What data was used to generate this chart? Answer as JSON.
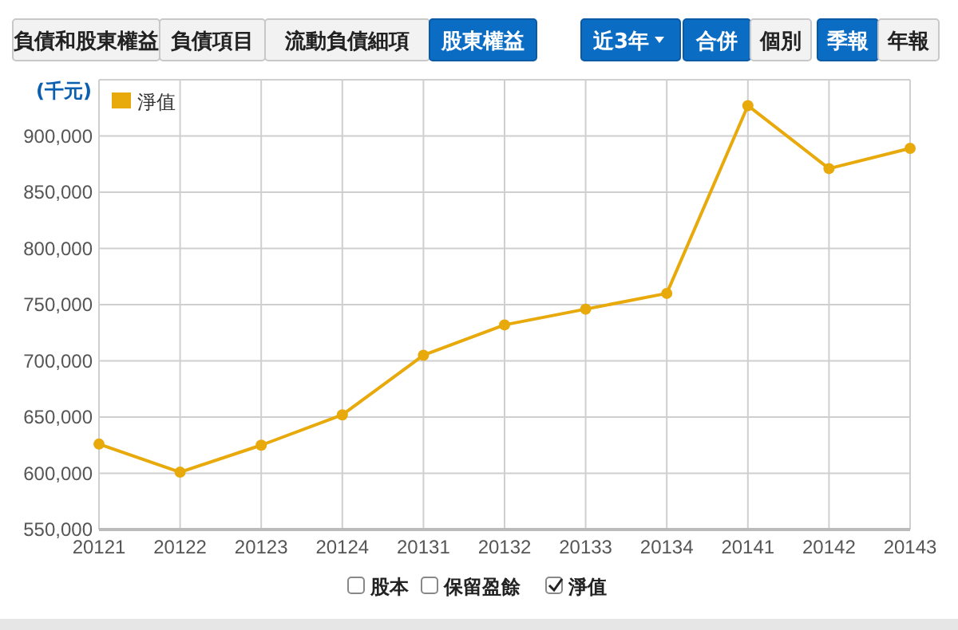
{
  "chart_data": {
    "type": "line",
    "ylabel": "(千元)",
    "categories": [
      "20121",
      "20122",
      "20123",
      "20124",
      "20131",
      "20132",
      "20133",
      "20134",
      "20141",
      "20142",
      "20143"
    ],
    "series": [
      {
        "name": "淨值",
        "color": "#e8a90b",
        "values": [
          626000,
          601000,
          625000,
          652000,
          705000,
          732000,
          746000,
          760000,
          927000,
          871000,
          889000
        ]
      }
    ],
    "ylim": [
      550000,
      950000
    ],
    "yticks": [
      {
        "value": 550000,
        "label": "550,000"
      },
      {
        "value": 600000,
        "label": "600,000"
      },
      {
        "value": 650000,
        "label": "650,000"
      },
      {
        "value": 700000,
        "label": "700,000"
      },
      {
        "value": 750000,
        "label": "750,000"
      },
      {
        "value": 800000,
        "label": "800,000"
      },
      {
        "value": 850000,
        "label": "850,000"
      },
      {
        "value": 900000,
        "label": "900,000"
      },
      {
        "value": 950000,
        "label": null
      }
    ],
    "grid": true,
    "legend": "top left",
    "marker": "circle",
    "line_style": "solid",
    "annotations": [
      "負債和股東權益",
      "負債項目",
      "流動負債細項",
      "股東權益",
      "近3年",
      "合併",
      "個別",
      "季報",
      "年報",
      "股本",
      "保留盈餘",
      "淨值"
    ]
  }
}
